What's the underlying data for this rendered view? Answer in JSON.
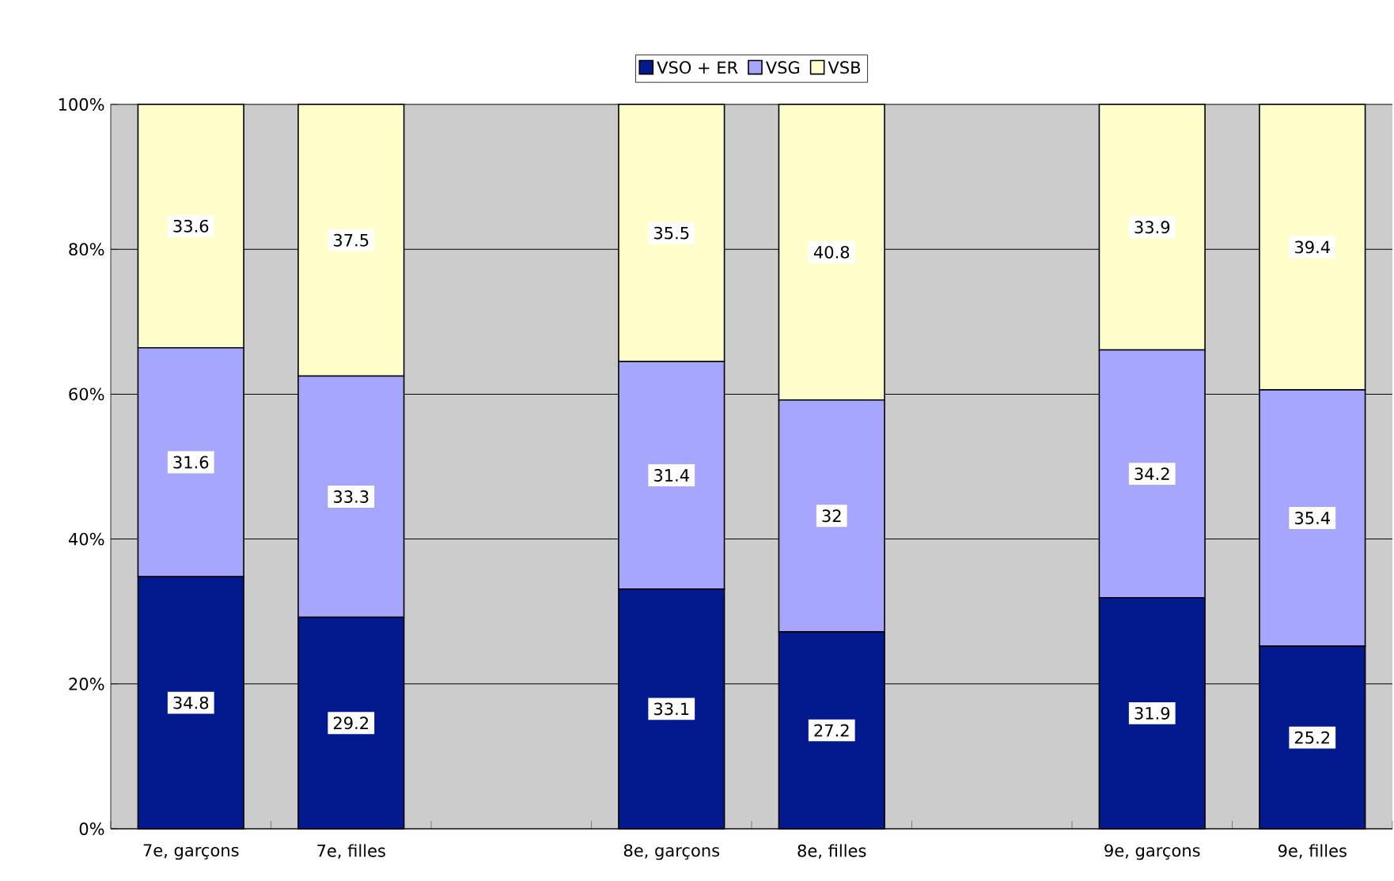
{
  "chart_data": {
    "type": "bar",
    "stacked": true,
    "categories": [
      "7e, garçons",
      "7e, filles",
      null,
      "8e, garçons",
      "8e, filles",
      null,
      "9e, garçons",
      "9e, filles"
    ],
    "series": [
      {
        "name": "VSO + ER",
        "color": "#031a8f",
        "values": [
          34.8,
          29.2,
          null,
          33.1,
          27.2,
          null,
          31.9,
          25.2
        ]
      },
      {
        "name": "VSG",
        "color": "#a6a6ff",
        "values": [
          31.6,
          33.3,
          null,
          31.4,
          32,
          null,
          34.2,
          35.4
        ]
      },
      {
        "name": "VSB",
        "color": "#ffffcc",
        "values": [
          33.6,
          37.5,
          null,
          35.5,
          40.8,
          null,
          33.9,
          39.4
        ]
      }
    ],
    "ylim": [
      0,
      100
    ],
    "yticks": [
      {
        "value": 0,
        "label": "0%"
      },
      {
        "value": 20,
        "label": "20%"
      },
      {
        "value": 40,
        "label": "40%"
      },
      {
        "value": 60,
        "label": "60%"
      },
      {
        "value": 80,
        "label": "80%"
      },
      {
        "value": 100,
        "label": "100%"
      }
    ],
    "grid": "y",
    "legend": "top",
    "data_labels": true
  }
}
